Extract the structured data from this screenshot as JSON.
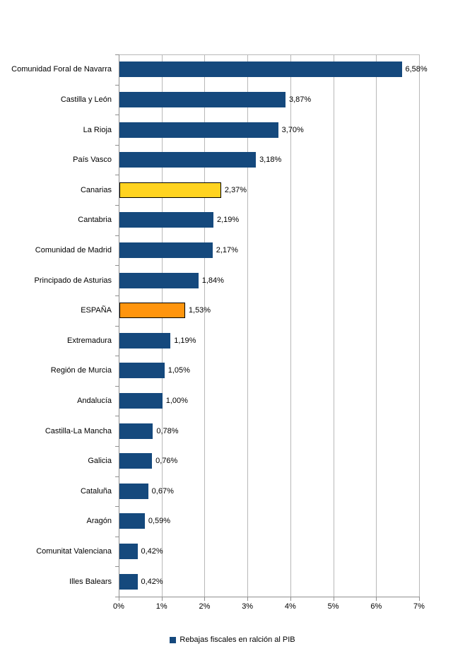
{
  "chart_data": {
    "type": "bar",
    "orientation": "horizontal",
    "title": "",
    "xlabel": "",
    "ylabel": "",
    "xlim": [
      0,
      7
    ],
    "x_tick_labels": [
      "0%",
      "1%",
      "2%",
      "3%",
      "4%",
      "5%",
      "6%",
      "7%"
    ],
    "grid": "vertical-only",
    "legend_position": "bottom-center",
    "series_name": "Rebajas fiscales en ralción al PIB",
    "categories": [
      "Comunidad Foral de Navarra",
      "Castilla y León",
      "La Rioja",
      "País Vasco",
      "Canarias",
      "Cantabria",
      "Comunidad de Madrid",
      "Principado de Asturias",
      "ESPAÑA",
      "Extremadura",
      "Región de Murcia",
      "Andalucía",
      "Castilla-La Mancha",
      "Galicia",
      "Cataluña",
      "Aragón",
      "Comunitat Valenciana",
      "Illes Balears"
    ],
    "values": [
      6.58,
      3.87,
      3.7,
      3.18,
      2.37,
      2.19,
      2.17,
      1.84,
      1.53,
      1.19,
      1.05,
      1.0,
      0.78,
      0.76,
      0.67,
      0.59,
      0.42,
      0.42
    ],
    "data_labels": [
      "6,58%",
      "3,87%",
      "3,70%",
      "3,18%",
      "2,37%",
      "2,19%",
      "2,17%",
      "1,84%",
      "1,53%",
      "1,19%",
      "1,05%",
      "1,00%",
      "0,78%",
      "0,76%",
      "0,67%",
      "0,59%",
      "0,42%",
      "0,42%"
    ],
    "highlighted_bars": [
      {
        "index": 4,
        "category": "Canarias",
        "fill": "#FFD320",
        "stroke": "#000000"
      },
      {
        "index": 8,
        "category": "ESPAÑA",
        "fill": "#FF950E",
        "stroke": "#000000"
      }
    ]
  },
  "legend": {
    "label": "Rebajas fiscales en ralción al PIB"
  },
  "colors": {
    "bar_default": "#15497D",
    "gridline": "#B8B8B8",
    "axis": "#8F8F8F",
    "text": "#000000",
    "background": "#FFFFFF"
  }
}
